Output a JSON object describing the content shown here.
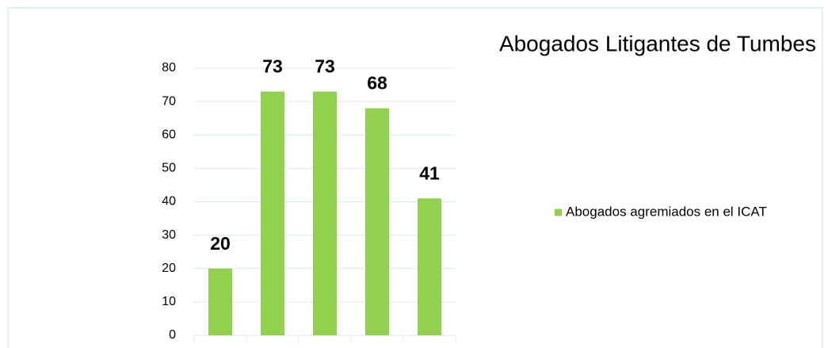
{
  "chart_data": {
    "type": "bar",
    "title": "Abogados Litigantes de Tumbes",
    "categories": [
      null,
      null,
      null,
      null,
      null
    ],
    "series": [
      {
        "name": "Abogados agremiados en el ICAT",
        "color": "#92d050",
        "values": [
          20,
          73,
          73,
          68,
          41
        ]
      }
    ],
    "ylim": [
      0,
      80
    ],
    "yticks": [
      0,
      10,
      20,
      30,
      40,
      50,
      60,
      70,
      80
    ],
    "grid": true,
    "legend": "right"
  }
}
